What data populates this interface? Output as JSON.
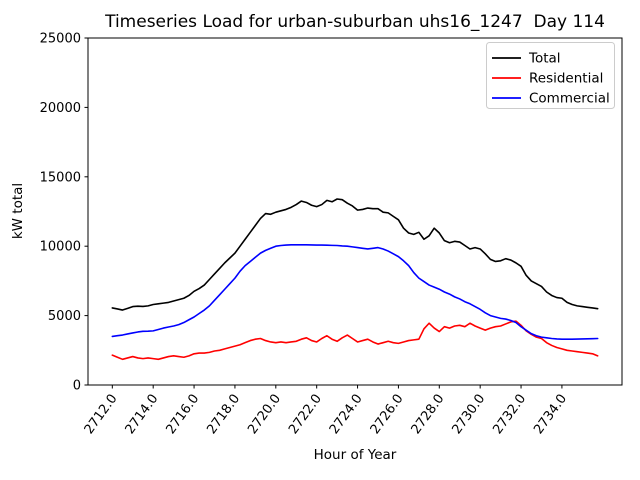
{
  "figure": {
    "title": "Timeseries Load for urban-suburban uhs16_1247  Day 114",
    "xlabel": "Hour of Year",
    "ylabel": "kW total"
  },
  "chart_data": {
    "type": "line",
    "title": "Timeseries Load for urban-suburban uhs16_1247  Day 114",
    "xlabel": "Hour of Year",
    "ylabel": "kW total",
    "grid": false,
    "legend_position": "upper right",
    "xlim": [
      2710.81,
      2736.94
    ],
    "ylim": [
      0,
      25000
    ],
    "x_tick_values": [
      2712,
      2714,
      2716,
      2718,
      2720,
      2722,
      2724,
      2726,
      2728,
      2730,
      2732,
      2734
    ],
    "x_tick_labels": [
      "2712.0",
      "2714.0",
      "2716.0",
      "2718.0",
      "2720.0",
      "2722.0",
      "2724.0",
      "2726.0",
      "2728.0",
      "2730.0",
      "2732.0",
      "2734.0"
    ],
    "y_tick_values": [
      0,
      5000,
      10000,
      15000,
      20000,
      25000
    ],
    "y_tick_labels": [
      "0",
      "5000",
      "10000",
      "15000",
      "20000",
      "25000"
    ],
    "x": [
      2712.0,
      2712.25,
      2712.5,
      2712.75,
      2713.0,
      2713.25,
      2713.5,
      2713.75,
      2714.0,
      2714.25,
      2714.5,
      2714.75,
      2715.0,
      2715.25,
      2715.5,
      2715.75,
      2716.0,
      2716.25,
      2716.5,
      2716.75,
      2717.0,
      2717.25,
      2717.5,
      2717.75,
      2718.0,
      2718.25,
      2718.5,
      2718.75,
      2719.0,
      2719.25,
      2719.5,
      2719.75,
      2720.0,
      2720.25,
      2720.5,
      2720.75,
      2721.0,
      2721.25,
      2721.5,
      2721.75,
      2722.0,
      2722.25,
      2722.5,
      2722.75,
      2723.0,
      2723.25,
      2723.5,
      2723.75,
      2724.0,
      2724.25,
      2724.5,
      2724.75,
      2725.0,
      2725.25,
      2725.5,
      2725.75,
      2726.0,
      2726.25,
      2726.5,
      2726.75,
      2727.0,
      2727.25,
      2727.5,
      2727.75,
      2728.0,
      2728.25,
      2728.5,
      2728.75,
      2729.0,
      2729.25,
      2729.5,
      2729.75,
      2730.0,
      2730.25,
      2730.5,
      2730.75,
      2731.0,
      2731.25,
      2731.5,
      2731.75,
      2732.0,
      2732.25,
      2732.5,
      2732.75,
      2733.0,
      2733.25,
      2733.5,
      2733.75,
      2734.0,
      2734.25,
      2734.5,
      2734.75,
      2735.0,
      2735.25,
      2735.5,
      2735.75
    ],
    "series": [
      {
        "name": "Total",
        "color": "#000000",
        "values": [
          5550,
          5480,
          5400,
          5520,
          5650,
          5680,
          5660,
          5700,
          5800,
          5850,
          5900,
          5950,
          6050,
          6150,
          6250,
          6450,
          6750,
          6950,
          7200,
          7600,
          8000,
          8400,
          8800,
          9150,
          9500,
          10000,
          10500,
          11000,
          11500,
          12000,
          12350,
          12300,
          12450,
          12550,
          12650,
          12800,
          13000,
          13250,
          13150,
          12950,
          12850,
          13000,
          13300,
          13200,
          13400,
          13350,
          13100,
          12900,
          12600,
          12650,
          12750,
          12700,
          12700,
          12450,
          12400,
          12150,
          11900,
          11300,
          10950,
          10850,
          11000,
          10500,
          10750,
          11300,
          10950,
          10400,
          10250,
          10350,
          10300,
          10050,
          9800,
          9900,
          9800,
          9450,
          9050,
          8900,
          8950,
          9100,
          9000,
          8800,
          8550,
          7900,
          7500,
          7300,
          7100,
          6700,
          6450,
          6300,
          6250,
          5950,
          5800,
          5700,
          5650,
          5600,
          5550,
          5500
        ]
      },
      {
        "name": "Residential",
        "color": "#ff0000",
        "values": [
          2150,
          2000,
          1850,
          1950,
          2050,
          1950,
          1900,
          1950,
          1900,
          1850,
          1950,
          2050,
          2100,
          2050,
          2000,
          2100,
          2250,
          2300,
          2300,
          2350,
          2450,
          2500,
          2600,
          2700,
          2800,
          2900,
          3050,
          3200,
          3300,
          3350,
          3200,
          3100,
          3050,
          3100,
          3050,
          3100,
          3150,
          3300,
          3400,
          3200,
          3100,
          3350,
          3550,
          3300,
          3150,
          3400,
          3600,
          3350,
          3100,
          3200,
          3300,
          3100,
          2950,
          3050,
          3150,
          3050,
          3000,
          3100,
          3200,
          3250,
          3300,
          4050,
          4450,
          4100,
          3850,
          4200,
          4100,
          4250,
          4300,
          4200,
          4450,
          4250,
          4100,
          3950,
          4100,
          4200,
          4250,
          4400,
          4550,
          4600,
          4300,
          3900,
          3650,
          3450,
          3350,
          3050,
          2850,
          2700,
          2600,
          2500,
          2450,
          2400,
          2350,
          2300,
          2250,
          2100
        ]
      },
      {
        "name": "Commercial",
        "color": "#0000ff",
        "values": [
          3500,
          3550,
          3600,
          3680,
          3750,
          3820,
          3870,
          3880,
          3900,
          4000,
          4100,
          4180,
          4250,
          4350,
          4500,
          4700,
          4900,
          5150,
          5400,
          5700,
          6100,
          6500,
          6900,
          7300,
          7700,
          8200,
          8600,
          8900,
          9200,
          9500,
          9700,
          9850,
          10000,
          10050,
          10080,
          10100,
          10100,
          10100,
          10100,
          10090,
          10080,
          10080,
          10070,
          10060,
          10050,
          10020,
          10000,
          9950,
          9900,
          9850,
          9800,
          9850,
          9900,
          9800,
          9650,
          9450,
          9250,
          8950,
          8600,
          8100,
          7700,
          7450,
          7200,
          7050,
          6900,
          6700,
          6550,
          6350,
          6200,
          6000,
          5850,
          5650,
          5450,
          5200,
          5000,
          4900,
          4800,
          4750,
          4650,
          4500,
          4200,
          3950,
          3700,
          3550,
          3450,
          3400,
          3350,
          3320,
          3300,
          3300,
          3300,
          3310,
          3320,
          3330,
          3340,
          3350
        ]
      }
    ]
  }
}
